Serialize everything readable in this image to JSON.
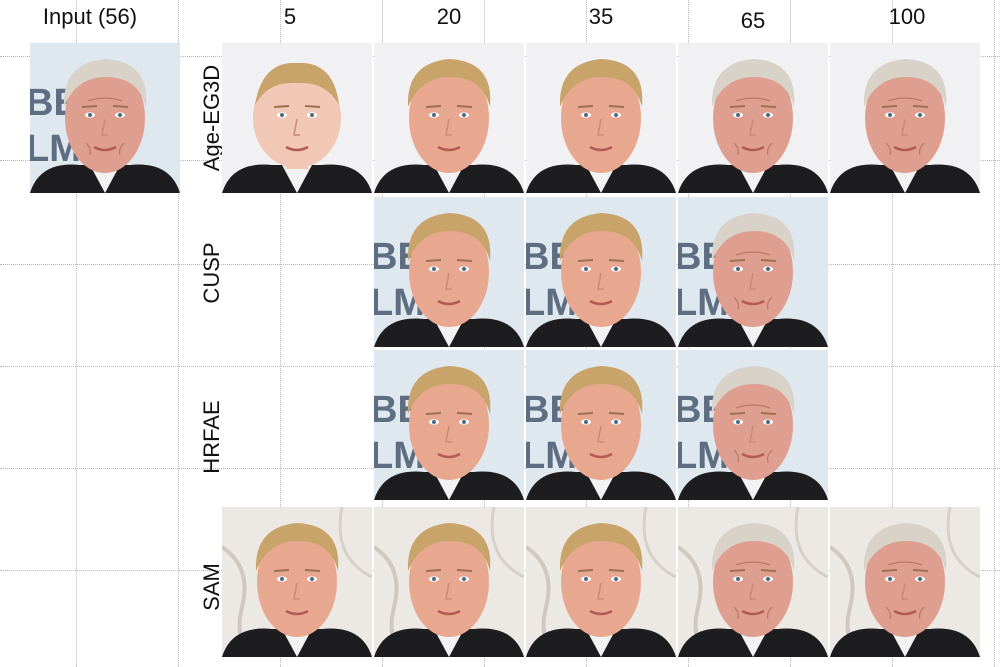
{
  "headers": {
    "input": "Input (56)",
    "ages": [
      "5",
      "20",
      "35",
      "65",
      "100"
    ]
  },
  "row_labels": [
    "Age-EG3D",
    "CUSP",
    "HRFAE",
    "SAM"
  ],
  "background_text": {
    "line1": "BE",
    "line2": "LM"
  },
  "colors": {
    "skin_young": "#f1c7b5",
    "skin_adult": "#e8a88f",
    "skin_old": "#df9f90",
    "hair_blond": "#c9a46a",
    "hair_gray": "#d8d2c8",
    "jacket": "#1d1d20",
    "shirt": "#f2f2f2",
    "backdrop": "#dfe7ef",
    "backdrop_text": "#5d6d82"
  }
}
